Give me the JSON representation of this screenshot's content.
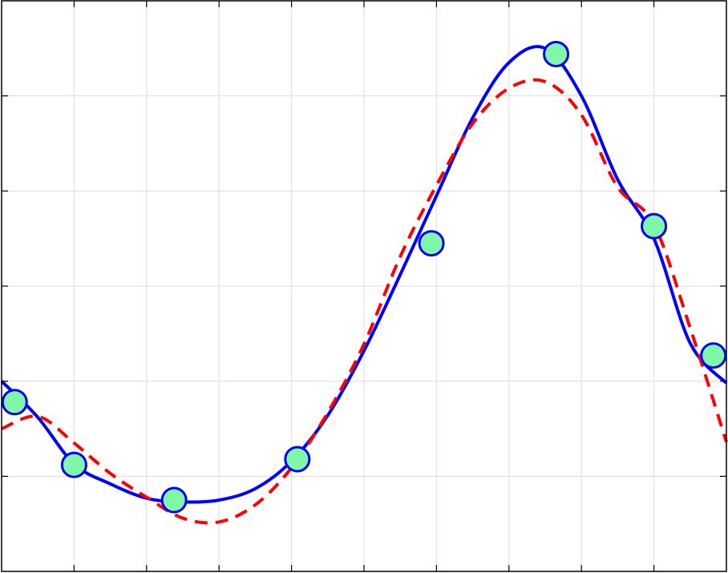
{
  "chart_data": {
    "type": "line",
    "title": "",
    "xlabel": "",
    "ylabel": "",
    "xlim": [
      0,
      10
    ],
    "ylim": [
      0,
      6
    ],
    "grid": true,
    "legend": "none",
    "series": [
      {
        "style": "solid",
        "color": "#0000ff",
        "x": [
          0,
          0.5,
          1,
          1.5,
          2,
          2.5,
          3,
          3.5,
          4,
          4.5,
          5,
          5.5,
          6,
          6.5,
          7,
          7.5,
          8,
          8.5,
          9,
          9.5,
          10
        ],
        "y": [
          2.0,
          1.62,
          1.13,
          0.92,
          0.77,
          0.73,
          0.75,
          0.87,
          1.16,
          1.64,
          2.32,
          3.12,
          3.95,
          4.77,
          5.35,
          5.5,
          5.0,
          4.12,
          3.5,
          2.4,
          1.98
        ]
      },
      {
        "style": "dashed",
        "color": "#ff0000",
        "x": [
          0,
          0.5,
          1,
          1.5,
          2,
          2.5,
          3,
          3.5,
          4,
          4.5,
          5,
          5.5,
          6,
          6.5,
          7,
          7.5,
          8,
          8.5,
          9,
          9.5,
          10
        ],
        "y": [
          1.5,
          1.63,
          1.35,
          1.03,
          0.78,
          0.56,
          0.52,
          0.7,
          1.09,
          1.67,
          2.39,
          3.31,
          4.06,
          4.71,
          5.08,
          5.15,
          4.8,
          4.04,
          3.65,
          2.56,
          1.36
        ]
      },
      {
        "style": "markers",
        "marker_fill": "#7ff7a6",
        "marker_edge": "#0000ff",
        "x": [
          0.18,
          1.0,
          2.38,
          4.08,
          5.93,
          7.65,
          9.0,
          9.82
        ],
        "y": [
          1.78,
          1.12,
          0.75,
          1.18,
          3.45,
          5.44,
          3.63,
          2.27
        ]
      }
    ]
  }
}
